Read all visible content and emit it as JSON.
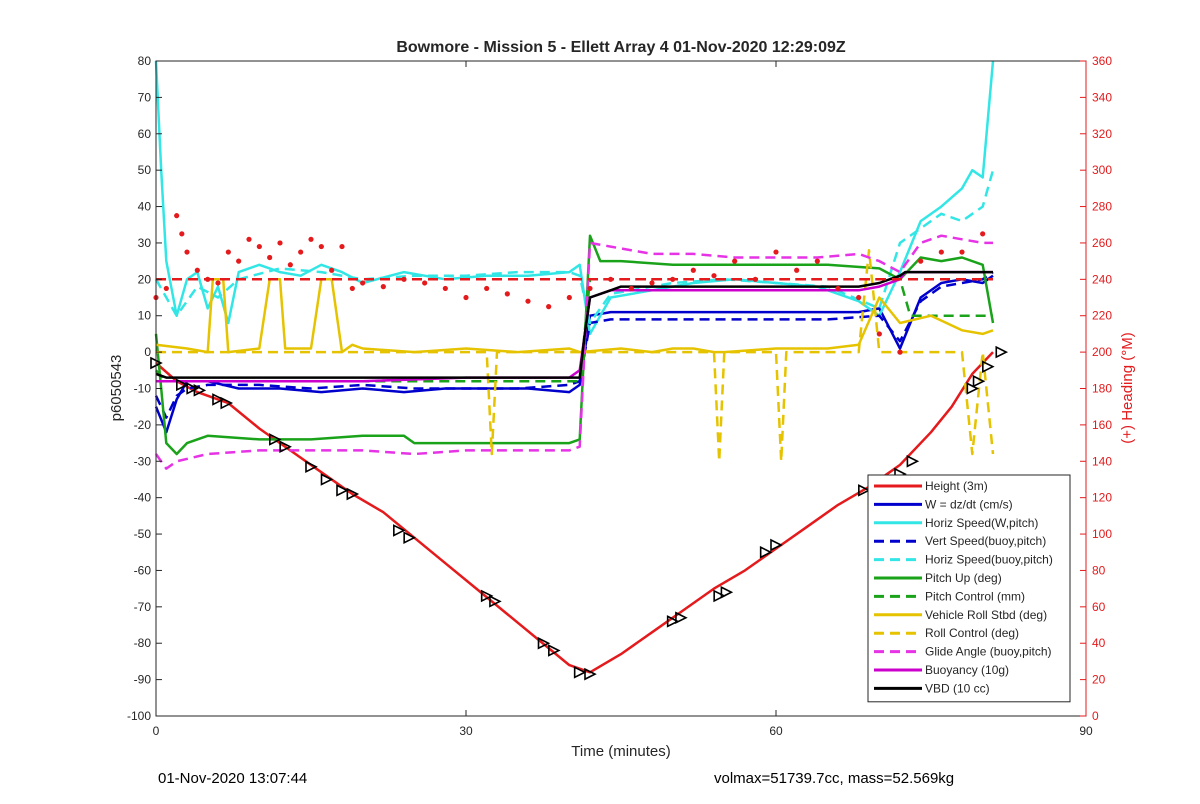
{
  "chart_data": {
    "type": "line",
    "title": "Bowmore - Mission 5 - Ellett Array 4 01-Nov-2020 12:29:09Z",
    "xlabel": "Time (minutes)",
    "ylabel_left": "p6050543",
    "ylabel_right": "(+) Heading (°M)",
    "xlim": [
      0,
      90
    ],
    "ylim_left": [
      -100,
      80
    ],
    "ylim_right": [
      0,
      360
    ],
    "xticks": [
      0,
      30,
      60,
      90
    ],
    "yticks_left": [
      -100,
      -90,
      -80,
      -70,
      -60,
      -50,
      -40,
      -30,
      -20,
      -10,
      0,
      10,
      20,
      30,
      40,
      50,
      60,
      70,
      80
    ],
    "yticks_right": [
      0,
      20,
      40,
      60,
      80,
      100,
      120,
      140,
      160,
      180,
      200,
      220,
      240,
      260,
      280,
      300,
      320,
      340,
      360
    ],
    "legend_position": "bottom-right",
    "series": [
      {
        "name": "Height (3m)",
        "color": "#e41a1c",
        "style": "solid",
        "x": [
          0,
          2,
          4,
          7,
          10,
          13,
          16,
          19,
          22,
          25,
          28,
          31,
          34,
          37,
          40,
          42,
          45,
          48,
          51,
          54,
          57,
          60,
          63,
          66,
          69,
          72,
          75,
          77,
          79,
          81
        ],
        "y": [
          -3,
          -8,
          -11,
          -14,
          -21,
          -27,
          -33,
          -39,
          -44,
          -51,
          -58,
          -65,
          -72,
          -79,
          -86,
          -88,
          -83,
          -77,
          -71,
          -65,
          -60,
          -54,
          -48,
          -42,
          -37,
          -31,
          -22,
          -15,
          -6,
          0
        ]
      },
      {
        "name": "W = dz/dt (cm/s)",
        "color": "#0000cc",
        "style": "solid",
        "x": [
          0,
          1,
          2,
          3,
          5,
          8,
          12,
          16,
          20,
          24,
          28,
          32,
          36,
          40,
          41,
          42,
          44,
          48,
          52,
          56,
          60,
          64,
          68,
          70,
          72,
          74,
          76,
          78,
          80,
          81
        ],
        "y": [
          -15,
          -22,
          -13,
          -8,
          -8,
          -10,
          -10,
          -11,
          -10,
          -11,
          -10,
          -10,
          -10,
          -11,
          -9,
          10,
          11,
          11,
          11,
          11,
          11,
          11,
          11,
          12,
          1,
          15,
          19,
          20,
          19,
          21
        ]
      },
      {
        "name": "Horiz Speed(W,pitch)",
        "color": "#33e6e6",
        "style": "solid",
        "x": [
          0,
          0.5,
          1,
          2,
          3,
          4,
          5,
          6,
          7,
          8,
          10,
          12,
          14,
          16,
          18,
          20,
          24,
          28,
          32,
          36,
          40,
          41,
          42,
          44,
          48,
          52,
          56,
          60,
          64,
          68,
          70,
          72,
          74,
          76,
          78,
          79,
          80,
          81
        ],
        "y": [
          80,
          50,
          25,
          10,
          20,
          22,
          12,
          18,
          8,
          22,
          24,
          22,
          21,
          24,
          22,
          19,
          22,
          20,
          21,
          21,
          22,
          24,
          5,
          15,
          17,
          19,
          20,
          19,
          18,
          14,
          10,
          22,
          36,
          40,
          45,
          50,
          48,
          80
        ]
      },
      {
        "name": "Vert Speed(buoy,pitch)",
        "color": "#0000cc",
        "style": "dashed",
        "x": [
          0,
          1,
          2,
          3,
          5,
          10,
          15,
          20,
          25,
          30,
          35,
          40,
          41,
          42,
          44,
          50,
          55,
          60,
          65,
          70,
          72,
          74,
          76,
          78,
          80,
          81
        ],
        "y": [
          -12,
          -18,
          -12,
          -10,
          -9,
          -9,
          -10,
          -9,
          -10,
          -10,
          -10,
          -9,
          -8,
          8,
          9,
          9,
          9,
          9,
          9,
          10,
          3,
          14,
          18,
          19,
          20,
          22
        ]
      },
      {
        "name": "Horiz Speed(buoy,pitch)",
        "color": "#33e6e6",
        "style": "dashed",
        "x": [
          0,
          1,
          2,
          4,
          6,
          8,
          12,
          16,
          20,
          25,
          30,
          35,
          40,
          41,
          42,
          44,
          50,
          55,
          60,
          65,
          70,
          72,
          74,
          76,
          78,
          80,
          81
        ],
        "y": [
          20,
          15,
          10,
          18,
          15,
          20,
          23,
          22,
          20,
          21,
          21,
          22,
          22,
          21,
          8,
          16,
          19,
          20,
          19,
          18,
          12,
          30,
          34,
          38,
          36,
          40,
          50
        ]
      },
      {
        "name": "Pitch Up (deg)",
        "color": "#1aa31a",
        "style": "solid",
        "x": [
          0,
          0.5,
          1,
          2,
          3,
          5,
          10,
          15,
          20,
          24,
          25,
          30,
          35,
          40,
          41,
          42,
          43,
          45,
          50,
          55,
          60,
          65,
          70,
          72,
          74,
          76,
          78,
          80,
          81
        ],
        "y": [
          5,
          -10,
          -25,
          -28,
          -25,
          -23,
          -24,
          -24,
          -23,
          -23,
          -25,
          -25,
          -25,
          -25,
          -24,
          32,
          25,
          25,
          24,
          24,
          24,
          24,
          23,
          20,
          26,
          25,
          26,
          24,
          8
        ]
      },
      {
        "name": "Pitch Control (mm)",
        "color": "#1aa31a",
        "style": "dashed",
        "x": [
          0,
          1,
          41,
          42,
          72,
          73,
          81
        ],
        "y": [
          -5,
          -8,
          -8,
          20,
          20,
          10,
          10
        ]
      },
      {
        "name": "Vehicle Roll Stbd (deg)",
        "color": "#e6c300",
        "style": "solid",
        "x": [
          0,
          3,
          5,
          5.5,
          6.5,
          7,
          10,
          11,
          12,
          12.5,
          15,
          16,
          17,
          18,
          19,
          20,
          25,
          30,
          35,
          40,
          41,
          45,
          48,
          50,
          52,
          54,
          55,
          60,
          65,
          68,
          70,
          72,
          75,
          78,
          80,
          81
        ],
        "y": [
          2,
          1,
          0,
          20,
          20,
          0,
          1,
          20,
          20,
          1,
          1,
          20,
          20,
          0,
          2,
          1,
          0,
          1,
          0,
          1,
          0,
          1,
          0,
          1,
          1,
          0,
          0,
          1,
          1,
          2,
          15,
          8,
          10,
          6,
          5,
          6
        ]
      },
      {
        "name": "Roll Control (deg)",
        "color": "#e6c300",
        "style": "dashed",
        "x": [
          0,
          32,
          32.5,
          33,
          41,
          50,
          54,
          54.5,
          55,
          60,
          60.5,
          61,
          68,
          69,
          70,
          75,
          78,
          79,
          80,
          81
        ],
        "y": [
          0,
          0,
          -28,
          0,
          0,
          0,
          0,
          -30,
          0,
          0,
          -30,
          0,
          0,
          28,
          0,
          0,
          0,
          -28,
          0,
          -28
        ]
      },
      {
        "name": "Glide Angle (buoy,pitch)",
        "color": "#e633e6",
        "style": "dashed",
        "x": [
          0,
          1,
          2,
          5,
          10,
          15,
          20,
          25,
          30,
          35,
          40,
          41,
          42,
          44,
          48,
          52,
          56,
          60,
          64,
          68,
          70,
          72,
          74,
          76,
          78,
          80,
          81
        ],
        "y": [
          -28,
          -32,
          -30,
          -28,
          -27,
          -27,
          -27,
          -28,
          -27,
          -27,
          -27,
          -26,
          30,
          29,
          27,
          27,
          26,
          26,
          26,
          27,
          25,
          22,
          30,
          32,
          31,
          30,
          30
        ]
      },
      {
        "name": "Buoyancy (10g)",
        "color": "#cc00cc",
        "style": "solid",
        "x": [
          0,
          1,
          5,
          10,
          20,
          30,
          40,
          41,
          42,
          44,
          50,
          60,
          68,
          70,
          72,
          72.5,
          81
        ],
        "y": [
          -8,
          -8,
          -8,
          -8,
          -8,
          -7,
          -7,
          -5,
          15,
          17,
          17,
          17,
          17,
          18,
          20,
          22,
          22
        ]
      },
      {
        "name": "VBD (10 cc)",
        "color": "#000000",
        "style": "solid",
        "x": [
          0,
          1,
          41,
          41.5,
          42,
          44,
          45,
          68,
          70,
          71,
          72,
          72.5,
          81
        ],
        "y": [
          -6,
          -7,
          -7,
          5,
          15,
          17,
          18,
          18,
          19,
          20,
          21,
          22,
          22
        ]
      },
      {
        "name": "",
        "color": "#e41a1c",
        "style": "dashed",
        "axis": "right",
        "x": [
          0,
          81
        ],
        "y": [
          240,
          240
        ]
      },
      {
        "name": "",
        "color": "#e41a1c",
        "style": "dots",
        "axis": "right",
        "x": [
          0,
          1,
          2,
          2.5,
          3,
          4,
          5,
          6,
          7,
          8,
          9,
          10,
          11,
          12,
          13,
          14,
          15,
          16,
          17,
          18,
          19,
          20,
          22,
          24,
          26,
          28,
          30,
          32,
          34,
          36,
          38,
          40,
          42,
          44,
          46,
          48,
          50,
          52,
          54,
          56,
          58,
          60,
          62,
          64,
          66,
          68,
          70,
          72,
          74,
          76,
          78,
          80
        ],
        "y": [
          230,
          235,
          275,
          265,
          255,
          245,
          240,
          238,
          255,
          250,
          262,
          258,
          252,
          260,
          248,
          255,
          262,
          258,
          245,
          258,
          235,
          238,
          236,
          240,
          238,
          235,
          230,
          235,
          232,
          228,
          225,
          230,
          235,
          240,
          235,
          238,
          240,
          245,
          242,
          250,
          240,
          255,
          245,
          250,
          235,
          230,
          210,
          200,
          250,
          255,
          255,
          265
        ]
      }
    ],
    "markers": {
      "color": "#000000",
      "x": [
        0,
        2.5,
        3.5,
        4.2,
        6,
        6.8,
        11.5,
        12.5,
        15,
        16.5,
        18,
        19,
        23.5,
        24.5,
        32,
        32.8,
        37.5,
        38.5,
        41,
        42,
        50,
        50.8,
        54.5,
        55.2,
        59,
        60,
        68.5,
        69.5,
        72,
        73.2,
        79,
        79.6,
        80.5,
        81.8
      ],
      "y": [
        -3,
        -9,
        -10,
        -10.5,
        -13,
        -14,
        -24,
        -26,
        -31.5,
        -35,
        -38,
        -39,
        -49,
        -51,
        -67,
        -68.5,
        -80,
        -82,
        -88,
        -88.5,
        -74,
        -73,
        -67,
        -66,
        -55,
        -53,
        -38,
        -38.5,
        -33.5,
        -30,
        -10,
        -8,
        -4,
        0
      ]
    }
  },
  "footer": {
    "left": "01-Nov-2020 13:07:44",
    "right": "volmax=51739.7cc, mass=52.569kg"
  }
}
